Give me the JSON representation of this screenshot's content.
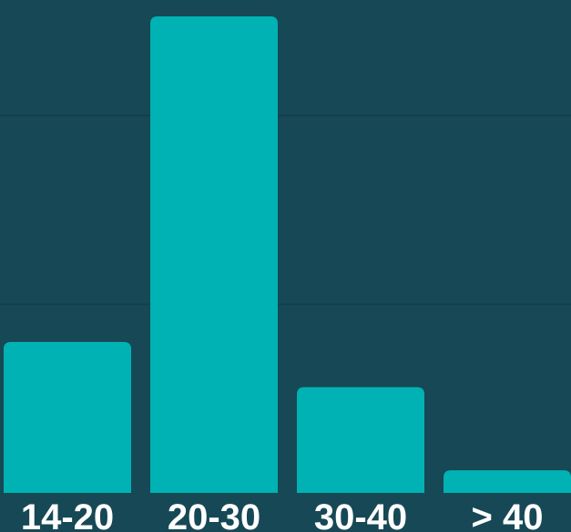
{
  "colors": {
    "background": "#174855",
    "bar": "#00b2b3",
    "gridline": "#123d49",
    "label": "#ffffff"
  },
  "chart_data": {
    "type": "bar",
    "title": "",
    "xlabel": "",
    "ylabel": "",
    "categories": [
      "14-20",
      "20-30",
      "30-40",
      "> 40"
    ],
    "values": [
      16,
      50.5,
      11.2,
      2.4
    ],
    "ylim": [
      0,
      50.5
    ],
    "grid": true,
    "gridlines": [
      20,
      40
    ],
    "legend": "none"
  }
}
